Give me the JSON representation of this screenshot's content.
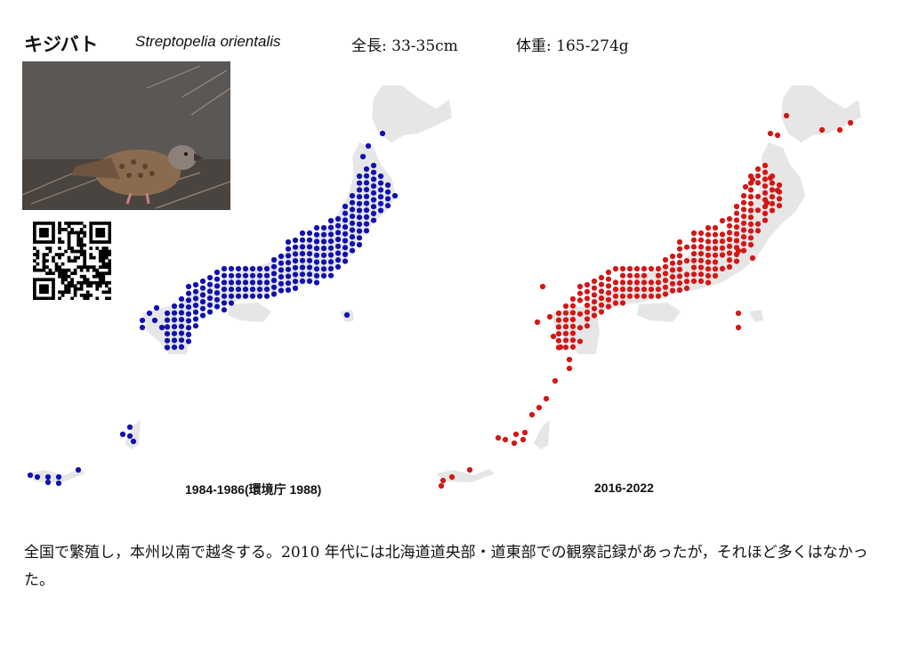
{
  "species": {
    "name_jp": "キジバト",
    "name_sci": "Streptopelia orientalis",
    "length": "全長: 33-35cm",
    "weight": "体重: 165-274g"
  },
  "maps": [
    {
      "period": "1984-1986(環境庁 1988)",
      "dot_color": "#1010b0"
    },
    {
      "period": "2016-2022",
      "dot_color": "#d41616"
    }
  ],
  "colors": {
    "land": "#e6e6e6",
    "photo_bg": "#5a5654",
    "bird": "#8a6a4e"
  },
  "icons": {
    "photo": "bird-photo",
    "qr": "qr-code-icon"
  },
  "description": "全国で繁殖し，本州以南で越冬する。2010 年代には北海道道央部・道東部での観察記録があったが，それほど多くはなかった。"
}
